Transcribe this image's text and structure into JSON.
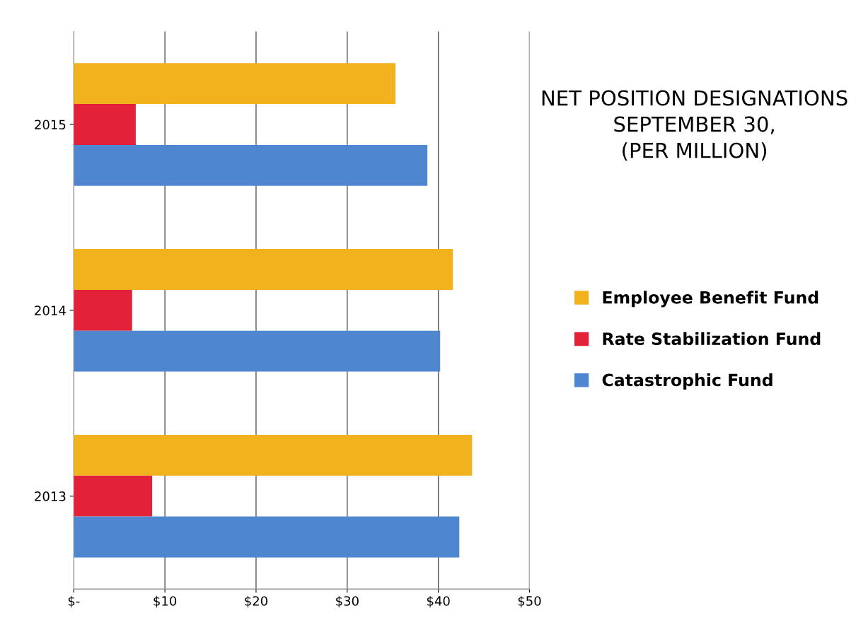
{
  "chart_data": {
    "type": "bar",
    "orientation": "horizontal",
    "title": "NET POSITION DESIGNATIONS\nSEPTEMBER 30,\n(PER MILLION)",
    "categories": [
      "2015",
      "2014",
      "2013"
    ],
    "series": [
      {
        "name": "Employee Benefit Fund",
        "color": "#f2b21e",
        "values": [
          35.3,
          41.6,
          43.7
        ]
      },
      {
        "name": "Rate Stabilization Fund",
        "color": "#e3223a",
        "values": [
          6.8,
          6.4,
          8.6
        ]
      },
      {
        "name": "Catastrophic Fund",
        "color": "#4f86d0",
        "values": [
          38.8,
          40.2,
          42.3
        ]
      }
    ],
    "xlim": [
      0,
      50
    ],
    "xticks": [
      {
        "value": 0,
        "label": "$-"
      },
      {
        "value": 10,
        "label": "$10"
      },
      {
        "value": 20,
        "label": "$20"
      },
      {
        "value": 30,
        "label": "$30"
      },
      {
        "value": 40,
        "label": "$40"
      },
      {
        "value": 50,
        "label": "$50"
      }
    ],
    "grid": "x",
    "legend": "right"
  }
}
